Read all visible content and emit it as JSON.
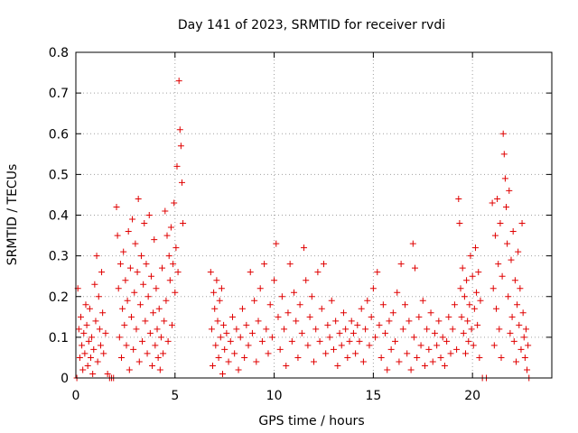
{
  "chart_data": {
    "type": "scatter",
    "title": "Day 141 of 2023, SRMTID for receiver rvdi",
    "xlabel": "GPS time / hours",
    "ylabel": "SRMTID / TECUs",
    "xlim": [
      0,
      24
    ],
    "ylim": [
      0,
      0.8
    ],
    "xticks": [
      0,
      5,
      10,
      15,
      20
    ],
    "yticks": [
      0,
      0.1,
      0.2,
      0.3,
      0.4,
      0.5,
      0.6,
      0.7,
      0.8
    ],
    "grid": true,
    "marker": "+",
    "color": "#e00000",
    "series": [
      {
        "name": "SRMTID",
        "points": [
          [
            0.05,
            0.0
          ],
          [
            0.1,
            0.22
          ],
          [
            0.15,
            0.12
          ],
          [
            0.2,
            0.05
          ],
          [
            0.25,
            0.15
          ],
          [
            0.3,
            0.08
          ],
          [
            0.35,
            0.02
          ],
          [
            0.4,
            0.11
          ],
          [
            0.45,
            0.06
          ],
          [
            0.5,
            0.18
          ],
          [
            0.55,
            0.13
          ],
          [
            0.6,
            0.03
          ],
          [
            0.65,
            0.09
          ],
          [
            0.7,
            0.17
          ],
          [
            0.75,
            0.05
          ],
          [
            0.8,
            0.1
          ],
          [
            0.85,
            0.01
          ],
          [
            0.9,
            0.07
          ],
          [
            0.95,
            0.23
          ],
          [
            1.0,
            0.14
          ],
          [
            1.05,
            0.3
          ],
          [
            1.1,
            0.04
          ],
          [
            1.15,
            0.2
          ],
          [
            1.2,
            0.12
          ],
          [
            1.25,
            0.08
          ],
          [
            1.3,
            0.26
          ],
          [
            1.35,
            0.16
          ],
          [
            1.4,
            0.06
          ],
          [
            1.5,
            0.11
          ],
          [
            1.6,
            0.01
          ],
          [
            1.7,
            0.0
          ],
          [
            1.8,
            0.0
          ],
          [
            1.9,
            0.0
          ],
          [
            2.05,
            0.42
          ],
          [
            2.1,
            0.35
          ],
          [
            2.15,
            0.22
          ],
          [
            2.2,
            0.1
          ],
          [
            2.25,
            0.28
          ],
          [
            2.3,
            0.05
          ],
          [
            2.35,
            0.17
          ],
          [
            2.4,
            0.31
          ],
          [
            2.45,
            0.13
          ],
          [
            2.5,
            0.24
          ],
          [
            2.55,
            0.08
          ],
          [
            2.6,
            0.19
          ],
          [
            2.65,
            0.36
          ],
          [
            2.7,
            0.02
          ],
          [
            2.75,
            0.27
          ],
          [
            2.8,
            0.15
          ],
          [
            2.85,
            0.39
          ],
          [
            2.9,
            0.07
          ],
          [
            2.95,
            0.21
          ],
          [
            3.0,
            0.33
          ],
          [
            3.05,
            0.12
          ],
          [
            3.1,
            0.26
          ],
          [
            3.15,
            0.44
          ],
          [
            3.2,
            0.04
          ],
          [
            3.25,
            0.18
          ],
          [
            3.3,
            0.3
          ],
          [
            3.35,
            0.09
          ],
          [
            3.4,
            0.23
          ],
          [
            3.45,
            0.38
          ],
          [
            3.5,
            0.14
          ],
          [
            3.55,
            0.28
          ],
          [
            3.6,
            0.06
          ],
          [
            3.65,
            0.2
          ],
          [
            3.7,
            0.4
          ],
          [
            3.75,
            0.11
          ],
          [
            3.8,
            0.25
          ],
          [
            3.85,
            0.03
          ],
          [
            3.9,
            0.16
          ],
          [
            3.95,
            0.34
          ],
          [
            4.0,
            0.08
          ],
          [
            4.05,
            0.22
          ],
          [
            4.1,
            0.12
          ],
          [
            4.15,
            0.05
          ],
          [
            4.2,
            0.17
          ],
          [
            4.25,
            0.02
          ],
          [
            4.3,
            0.1
          ],
          [
            4.35,
            0.27
          ],
          [
            4.4,
            0.06
          ],
          [
            4.45,
            0.14
          ],
          [
            4.5,
            0.41
          ],
          [
            4.55,
            0.19
          ],
          [
            4.6,
            0.35
          ],
          [
            4.65,
            0.09
          ],
          [
            4.7,
            0.3
          ],
          [
            4.75,
            0.24
          ],
          [
            4.8,
            0.37
          ],
          [
            4.85,
            0.13
          ],
          [
            4.9,
            0.28
          ],
          [
            4.95,
            0.43
          ],
          [
            5.0,
            0.21
          ],
          [
            5.05,
            0.32
          ],
          [
            5.1,
            0.52
          ],
          [
            5.15,
            0.26
          ],
          [
            5.2,
            0.73
          ],
          [
            5.25,
            0.61
          ],
          [
            5.3,
            0.57
          ],
          [
            5.35,
            0.48
          ],
          [
            5.4,
            0.38
          ],
          [
            6.8,
            0.26
          ],
          [
            6.85,
            0.12
          ],
          [
            6.9,
            0.03
          ],
          [
            6.95,
            0.21
          ],
          [
            7.0,
            0.17
          ],
          [
            7.05,
            0.08
          ],
          [
            7.1,
            0.24
          ],
          [
            7.15,
            0.14
          ],
          [
            7.2,
            0.05
          ],
          [
            7.25,
            0.19
          ],
          [
            7.3,
            0.1
          ],
          [
            7.35,
            0.22
          ],
          [
            7.4,
            0.01
          ],
          [
            7.45,
            0.13
          ],
          [
            7.5,
            0.07
          ],
          [
            7.6,
            0.11
          ],
          [
            7.7,
            0.04
          ],
          [
            7.8,
            0.09
          ],
          [
            7.9,
            0.15
          ],
          [
            8.0,
            0.06
          ],
          [
            8.1,
            0.12
          ],
          [
            8.2,
            0.02
          ],
          [
            8.3,
            0.1
          ],
          [
            8.4,
            0.17
          ],
          [
            8.5,
            0.05
          ],
          [
            8.6,
            0.13
          ],
          [
            8.7,
            0.08
          ],
          [
            8.8,
            0.26
          ],
          [
            8.9,
            0.11
          ],
          [
            9.0,
            0.19
          ],
          [
            9.1,
            0.04
          ],
          [
            9.2,
            0.14
          ],
          [
            9.3,
            0.22
          ],
          [
            9.4,
            0.09
          ],
          [
            9.5,
            0.28
          ],
          [
            9.6,
            0.12
          ],
          [
            9.7,
            0.06
          ],
          [
            9.8,
            0.18
          ],
          [
            9.9,
            0.1
          ],
          [
            10.0,
            0.24
          ],
          [
            10.1,
            0.33
          ],
          [
            10.2,
            0.15
          ],
          [
            10.3,
            0.07
          ],
          [
            10.4,
            0.2
          ],
          [
            10.5,
            0.12
          ],
          [
            10.6,
            0.03
          ],
          [
            10.7,
            0.16
          ],
          [
            10.8,
            0.28
          ],
          [
            10.9,
            0.09
          ],
          [
            11.0,
            0.21
          ],
          [
            11.1,
            0.14
          ],
          [
            11.2,
            0.05
          ],
          [
            11.3,
            0.18
          ],
          [
            11.4,
            0.11
          ],
          [
            11.5,
            0.32
          ],
          [
            11.6,
            0.24
          ],
          [
            11.7,
            0.08
          ],
          [
            11.8,
            0.15
          ],
          [
            11.9,
            0.2
          ],
          [
            12.0,
            0.04
          ],
          [
            12.1,
            0.12
          ],
          [
            12.2,
            0.26
          ],
          [
            12.3,
            0.09
          ],
          [
            12.4,
            0.17
          ],
          [
            12.5,
            0.28
          ],
          [
            12.6,
            0.06
          ],
          [
            12.7,
            0.13
          ],
          [
            12.8,
            0.1
          ],
          [
            12.9,
            0.19
          ],
          [
            13.0,
            0.07
          ],
          [
            13.1,
            0.14
          ],
          [
            13.2,
            0.03
          ],
          [
            13.3,
            0.11
          ],
          [
            13.4,
            0.08
          ],
          [
            13.5,
            0.16
          ],
          [
            13.6,
            0.12
          ],
          [
            13.7,
            0.05
          ],
          [
            13.8,
            0.09
          ],
          [
            13.9,
            0.14
          ],
          [
            14.0,
            0.11
          ],
          [
            14.1,
            0.06
          ],
          [
            14.2,
            0.13
          ],
          [
            14.3,
            0.09
          ],
          [
            14.4,
            0.17
          ],
          [
            14.5,
            0.04
          ],
          [
            14.6,
            0.12
          ],
          [
            14.7,
            0.19
          ],
          [
            14.8,
            0.08
          ],
          [
            14.9,
            0.15
          ],
          [
            15.0,
            0.22
          ],
          [
            15.1,
            0.1
          ],
          [
            15.2,
            0.26
          ],
          [
            15.3,
            0.13
          ],
          [
            15.4,
            0.05
          ],
          [
            15.5,
            0.18
          ],
          [
            15.6,
            0.11
          ],
          [
            15.7,
            0.02
          ],
          [
            15.8,
            0.14
          ],
          [
            15.9,
            0.07
          ],
          [
            16.0,
            0.16
          ],
          [
            16.1,
            0.09
          ],
          [
            16.2,
            0.21
          ],
          [
            16.3,
            0.04
          ],
          [
            16.4,
            0.28
          ],
          [
            16.5,
            0.12
          ],
          [
            16.6,
            0.18
          ],
          [
            16.7,
            0.06
          ],
          [
            16.8,
            0.14
          ],
          [
            16.9,
            0.02
          ],
          [
            17.0,
            0.33
          ],
          [
            17.05,
            0.1
          ],
          [
            17.1,
            0.27
          ],
          [
            17.2,
            0.05
          ],
          [
            17.3,
            0.15
          ],
          [
            17.4,
            0.08
          ],
          [
            17.5,
            0.19
          ],
          [
            17.6,
            0.03
          ],
          [
            17.7,
            0.12
          ],
          [
            17.8,
            0.07
          ],
          [
            17.9,
            0.16
          ],
          [
            18.0,
            0.04
          ],
          [
            18.1,
            0.11
          ],
          [
            18.2,
            0.08
          ],
          [
            18.3,
            0.14
          ],
          [
            18.4,
            0.05
          ],
          [
            18.5,
            0.1
          ],
          [
            18.6,
            0.03
          ],
          [
            18.7,
            0.09
          ],
          [
            18.8,
            0.15
          ],
          [
            18.9,
            0.06
          ],
          [
            19.0,
            0.12
          ],
          [
            19.1,
            0.18
          ],
          [
            19.2,
            0.07
          ],
          [
            19.3,
            0.44
          ],
          [
            19.35,
            0.38
          ],
          [
            19.4,
            0.22
          ],
          [
            19.45,
            0.15
          ],
          [
            19.5,
            0.27
          ],
          [
            19.55,
            0.11
          ],
          [
            19.6,
            0.2
          ],
          [
            19.65,
            0.06
          ],
          [
            19.7,
            0.24
          ],
          [
            19.75,
            0.14
          ],
          [
            19.8,
            0.09
          ],
          [
            19.85,
            0.18
          ],
          [
            19.9,
            0.3
          ],
          [
            19.95,
            0.12
          ],
          [
            20.0,
            0.25
          ],
          [
            20.05,
            0.08
          ],
          [
            20.1,
            0.17
          ],
          [
            20.15,
            0.32
          ],
          [
            20.2,
            0.21
          ],
          [
            20.25,
            0.13
          ],
          [
            20.3,
            0.26
          ],
          [
            20.35,
            0.05
          ],
          [
            20.4,
            0.19
          ],
          [
            20.5,
            0.0
          ],
          [
            20.7,
            0.0
          ],
          [
            21.0,
            0.43
          ],
          [
            21.05,
            0.22
          ],
          [
            21.1,
            0.08
          ],
          [
            21.15,
            0.35
          ],
          [
            21.2,
            0.17
          ],
          [
            21.25,
            0.44
          ],
          [
            21.3,
            0.28
          ],
          [
            21.35,
            0.12
          ],
          [
            21.4,
            0.38
          ],
          [
            21.45,
            0.05
          ],
          [
            21.5,
            0.25
          ],
          [
            21.55,
            0.6
          ],
          [
            21.6,
            0.55
          ],
          [
            21.65,
            0.49
          ],
          [
            21.7,
            0.42
          ],
          [
            21.75,
            0.33
          ],
          [
            21.8,
            0.2
          ],
          [
            21.85,
            0.46
          ],
          [
            21.9,
            0.11
          ],
          [
            21.95,
            0.29
          ],
          [
            22.0,
            0.15
          ],
          [
            22.05,
            0.36
          ],
          [
            22.1,
            0.09
          ],
          [
            22.15,
            0.24
          ],
          [
            22.2,
            0.04
          ],
          [
            22.25,
            0.18
          ],
          [
            22.3,
            0.31
          ],
          [
            22.35,
            0.13
          ],
          [
            22.4,
            0.22
          ],
          [
            22.45,
            0.07
          ],
          [
            22.5,
            0.38
          ],
          [
            22.55,
            0.16
          ],
          [
            22.6,
            0.1
          ],
          [
            22.65,
            0.05
          ],
          [
            22.7,
            0.12
          ],
          [
            22.75,
            0.02
          ],
          [
            22.8,
            0.08
          ],
          [
            22.85,
            0.0
          ]
        ]
      }
    ]
  }
}
